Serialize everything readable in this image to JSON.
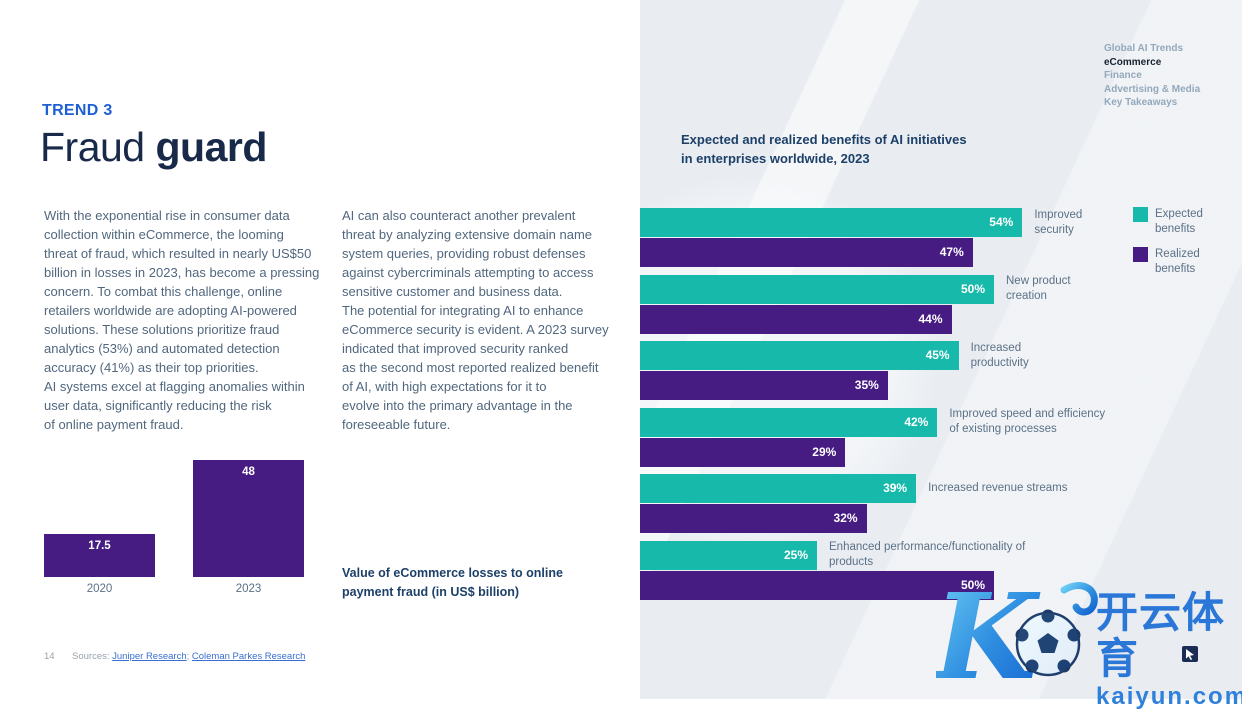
{
  "nav": {
    "items": [
      {
        "label": "Global AI Trends",
        "active": false
      },
      {
        "label": "eCommerce",
        "active": true
      },
      {
        "label": "Finance",
        "active": false
      },
      {
        "label": "Advertising & Media",
        "active": false
      },
      {
        "label": "Key Takeaways",
        "active": false
      }
    ]
  },
  "header": {
    "trend_label": "TREND 3",
    "title_light": "Fraud",
    "title_bold": "guard"
  },
  "body_text": {
    "left_column": "With the exponential rise in consumer data\ncollection within eCommerce, the looming\nthreat of fraud, which resulted in nearly US$50\nbillion in losses in 2023, has become a pressing\nconcern. To combat this challenge, online\nretailers worldwide are adopting AI-powered\nsolutions. These solutions prioritize fraud\nanalytics (53%) and automated detection\naccuracy (41%) as their top priorities.\nAI systems excel at flagging anomalies within\nuser data, significantly reducing the risk\nof online payment fraud.",
    "middle_column": "AI can also counteract another prevalent\nthreat by analyzing extensive domain name\nsystem queries, providing robust defenses\nagainst cybercriminals attempting to access\nsensitive customer and business data.\nThe potential for integrating AI to enhance\neCommerce security is evident. A 2023 survey\nindicated that improved security ranked\nas the second most reported realized benefit\nof AI, with high expectations for it to\nevolve into the primary advantage in the\nforeseeable future."
  },
  "legend": {
    "expected": "Expected\nbenefits",
    "realized": "Realized\nbenefits"
  },
  "colors": {
    "teal": "#17b9ab",
    "purple": "#471c82",
    "accent_blue": "#1e5fd4",
    "navy": "#1d4068"
  },
  "chart_data": [
    {
      "id": "ai_benefits",
      "type": "bar",
      "orientation": "horizontal",
      "title": "Expected and realized benefits of AI initiatives\nin enterprises worldwide, 2023",
      "unit": "%",
      "categories": [
        "Improved\nsecurity",
        "New product\ncreation",
        "Increased\nproductivity",
        "Improved speed and efficiency\nof existing processes",
        "Increased revenue streams",
        "Enhanced performance/functionality of products"
      ],
      "series": [
        {
          "name": "Expected benefits",
          "color": "#17b9ab",
          "values": [
            54,
            50,
            45,
            42,
            39,
            25
          ]
        },
        {
          "name": "Realized benefits",
          "color": "#471c82",
          "values": [
            47,
            44,
            35,
            29,
            32,
            50
          ]
        }
      ],
      "legend_position": "right",
      "grid": false
    },
    {
      "id": "ecommerce_fraud_losses",
      "type": "bar",
      "orientation": "vertical",
      "caption": "Value of eCommerce losses to online\npayment fraud (in US$ billion)",
      "categories": [
        "2020",
        "2023"
      ],
      "values": [
        17.5,
        48
      ],
      "value_labels": [
        "17.5",
        "48"
      ],
      "color": "#471c82",
      "grid": false
    }
  ],
  "footer": {
    "page_number": "14",
    "sources_label": "Sources:",
    "link1": "Juniper Research",
    "separator": ";",
    "link2": "Coleman Parkes Research"
  },
  "watermark": {
    "cjk_text": "开云体育",
    "domain_text": "kaiyun.com"
  }
}
